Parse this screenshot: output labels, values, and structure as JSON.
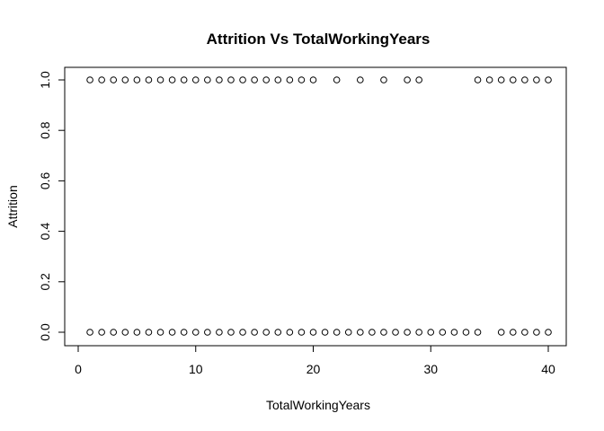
{
  "chart_data": {
    "type": "scatter",
    "title": "Attrition Vs TotalWorkingYears",
    "xlabel": "TotalWorkingYears",
    "ylabel": "Attrition",
    "xlim": [
      0,
      40
    ],
    "ylim": [
      0,
      1
    ],
    "x_ticks": [
      0,
      10,
      20,
      30,
      40
    ],
    "x_tick_labels": [
      "0",
      "10",
      "20",
      "30",
      "40"
    ],
    "y_ticks": [
      0.0,
      0.2,
      0.4,
      0.6,
      0.8,
      1.0
    ],
    "y_tick_labels": [
      "0.0",
      "0.2",
      "0.4",
      "0.6",
      "0.8",
      "1.0"
    ],
    "grid": false,
    "marker": "open-circle",
    "series": [
      {
        "y": 1,
        "x": [
          1,
          2,
          3,
          4,
          5,
          6,
          7,
          8,
          9,
          10,
          11,
          12,
          13,
          14,
          15,
          16,
          17,
          18,
          19,
          20,
          22,
          24,
          26,
          28,
          29,
          34,
          35,
          36,
          37,
          38,
          39,
          40
        ]
      },
      {
        "y": 0,
        "x": [
          1,
          2,
          3,
          4,
          5,
          6,
          7,
          8,
          9,
          10,
          11,
          12,
          13,
          14,
          15,
          16,
          17,
          18,
          19,
          20,
          21,
          22,
          23,
          24,
          25,
          26,
          27,
          28,
          29,
          30,
          31,
          32,
          33,
          34,
          36,
          37,
          38,
          39,
          40
        ]
      }
    ]
  }
}
